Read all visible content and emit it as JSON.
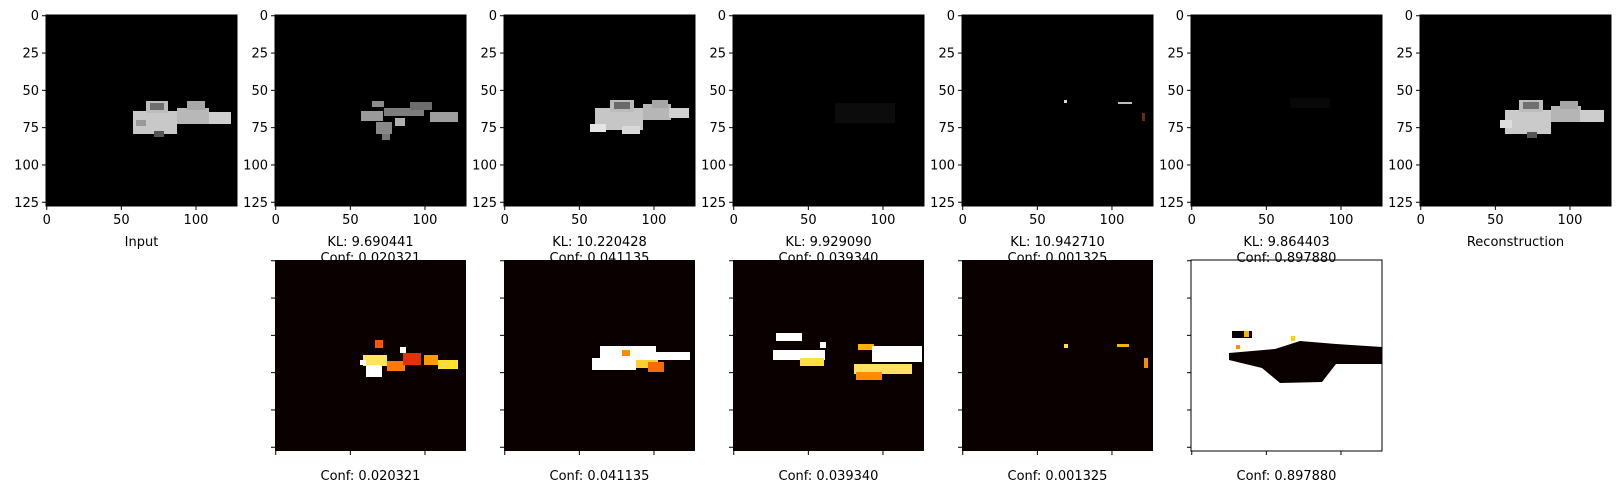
{
  "figure": {
    "top_row": [
      {
        "label": "Input",
        "conf": ""
      },
      {
        "label": "KL: 9.690441",
        "conf": "Conf: 0.020321"
      },
      {
        "label": "KL: 10.220428",
        "conf": "Conf: 0.041135"
      },
      {
        "label": "KL: 9.929090",
        "conf": "Conf: 0.039340"
      },
      {
        "label": "KL: 10.942710",
        "conf": "Conf: 0.001325"
      },
      {
        "label": "KL: 9.864403",
        "conf": "Conf: 0.897880"
      },
      {
        "label": "Reconstruction",
        "conf": ""
      }
    ],
    "bottom_row": [
      {
        "label": "Conf: 0.020321",
        "colormap": "hot",
        "background": "#0b0000"
      },
      {
        "label": "Conf: 0.041135",
        "colormap": "hot",
        "background": "#0b0000"
      },
      {
        "label": "Conf: 0.039340",
        "colormap": "hot",
        "background": "#0b0000"
      },
      {
        "label": "Conf: 0.001325",
        "colormap": "hot",
        "background": "#0b0000"
      },
      {
        "label": "Conf: 0.897880",
        "colormap": "hot",
        "background": "#ffffff"
      }
    ]
  },
  "chart_data": {
    "type": "heatmap",
    "image_size": [
      128,
      128
    ],
    "x_ticks": [
      0,
      50,
      100
    ],
    "y_ticks": [
      0,
      25,
      50,
      75,
      100,
      125
    ],
    "panels": [
      {
        "name": "Input",
        "kind": "image"
      },
      {
        "name": "KL: 9.690441",
        "kind": "image",
        "kl": 9.690441,
        "conf": 0.020321
      },
      {
        "name": "KL: 10.220428",
        "kind": "image",
        "kl": 10.220428,
        "conf": 0.041135
      },
      {
        "name": "KL: 9.929090",
        "kind": "image",
        "kl": 9.92909,
        "conf": 0.03934
      },
      {
        "name": "KL: 10.942710",
        "kind": "image",
        "kl": 10.94271,
        "conf": 0.001325
      },
      {
        "name": "KL: 9.864403",
        "kind": "image",
        "kl": 9.864403,
        "conf": 0.89788
      },
      {
        "name": "Reconstruction",
        "kind": "image"
      }
    ],
    "confidence_maps": [
      0.020321,
      0.041135,
      0.03934,
      0.001325,
      0.89788
    ]
  }
}
